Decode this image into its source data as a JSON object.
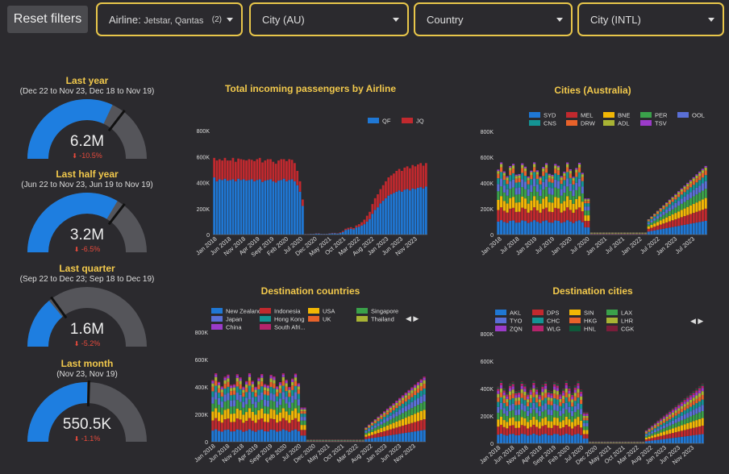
{
  "header": {
    "reset_label": "Reset filters",
    "filters": [
      {
        "label": "Airline: ",
        "value": "Jetstar, Qantas",
        "count": "(2)"
      },
      {
        "label": "City (AU)",
        "value": "",
        "count": ""
      },
      {
        "label": "Country",
        "value": "",
        "count": ""
      },
      {
        "label": "City (INTL)",
        "value": "",
        "count": ""
      }
    ]
  },
  "gauges": [
    {
      "title": "Last year",
      "subtitle": "(Dec 22 to Nov 23, Dec 18 to Nov 19)",
      "value": "6.2M",
      "delta": "-10.5%",
      "fraction": 0.64,
      "target": 0.71
    },
    {
      "title": "Last half year",
      "subtitle": "(Jun 22 to Nov 23, Jun 19 to Nov 19)",
      "value": "3.2M",
      "delta": "-6.5%",
      "fraction": 0.67,
      "target": 0.71
    },
    {
      "title": "Last quarter",
      "subtitle": "(Sep 22 to Dec 23; Sep 18 to Dec 19)",
      "value": "1.6M",
      "delta": "-5.2%",
      "fraction": 0.28,
      "target": 0.3
    },
    {
      "title": "Last month",
      "subtitle": "(Nov 23, Nov 19)",
      "value": "550.5K",
      "delta": "-1.1%",
      "fraction": 0.5,
      "target": 0.51
    }
  ],
  "colors": {
    "gauge_fill": "#1e7ee0",
    "gauge_track": "#55555a",
    "delta_red": "#e84a3c",
    "title_yellow": "#f2c94c"
  },
  "chart_data": [
    {
      "type": "bar",
      "stacked": true,
      "title": "Total incoming passengers by Airline",
      "ylim": [
        0,
        800000
      ],
      "yticks": [
        "0",
        "200K",
        "400K",
        "600K",
        "800K"
      ],
      "xticks": [
        "Jan 2018",
        "Jun 2018",
        "Nov 2018",
        "Apr 2019",
        "Sept 2019",
        "Feb 2020",
        "Jul 2020",
        "Dec 2020",
        "May 2021",
        "Oct 2021",
        "Mar 2022",
        "Aug 2022",
        "Jan 2023",
        "Jun 2023",
        "Nov 2023"
      ],
      "series": [
        {
          "name": "QF",
          "color": "#1f77d4",
          "values": [
            440000,
            410000,
            425000,
            420000,
            430000,
            415000,
            420000,
            425000,
            410000,
            430000,
            420000,
            425000,
            415000,
            420000,
            425000,
            410000,
            420000,
            425000,
            405000,
            415000,
            420000,
            425000,
            410000,
            400000,
            415000,
            420000,
            430000,
            410000,
            420000,
            425000,
            410000,
            380000,
            330000,
            220000,
            3000,
            3000,
            5000,
            5000,
            8000,
            8000,
            5000,
            5000,
            5000,
            8000,
            10000,
            10000,
            8000,
            12000,
            20000,
            35000,
            40000,
            45000,
            40000,
            55000,
            60000,
            70000,
            80000,
            100000,
            120000,
            160000,
            190000,
            210000,
            240000,
            260000,
            280000,
            300000,
            310000,
            320000,
            330000,
            340000,
            330000,
            345000,
            350000,
            340000,
            355000,
            350000,
            360000,
            365000,
            355000,
            370000
          ]
        },
        {
          "name": "JQ",
          "color": "#c1292e",
          "values": [
            150000,
            160000,
            155000,
            150000,
            160000,
            155000,
            150000,
            165000,
            150000,
            155000,
            160000,
            150000,
            155000,
            160000,
            150000,
            155000,
            160000,
            165000,
            150000,
            155000,
            160000,
            155000,
            150000,
            145000,
            155000,
            160000,
            150000,
            155000,
            160000,
            150000,
            140000,
            110000,
            80000,
            50000,
            1000,
            1000,
            1000,
            1000,
            2000,
            2000,
            1000,
            1000,
            1000,
            2000,
            3000,
            3000,
            2000,
            5000,
            8000,
            10000,
            12000,
            12000,
            10000,
            15000,
            20000,
            25000,
            35000,
            45000,
            55000,
            75000,
            90000,
            100000,
            110000,
            120000,
            130000,
            140000,
            145000,
            150000,
            160000,
            165000,
            160000,
            170000,
            175000,
            170000,
            180000,
            175000,
            180000,
            185000,
            175000,
            180000
          ]
        }
      ]
    },
    {
      "type": "bar",
      "stacked": true,
      "title": "Cities (Australia)",
      "ylim": [
        0,
        800000
      ],
      "yticks": [
        "0",
        "200K",
        "400K",
        "600K",
        "800K"
      ],
      "xticks": [
        "Jan 2018",
        "Jul 2018",
        "Jan 2019",
        "Jul 2019",
        "Jan 2020",
        "Jul 2020",
        "Jan 2021",
        "Jul 2021",
        "Jan 2022",
        "Jul 2022",
        "Jan 2023",
        "Jul 2023"
      ],
      "series": [
        {
          "name": "SYD",
          "color": "#1f77d4",
          "values": []
        },
        {
          "name": "MEL",
          "color": "#c1292e",
          "values": []
        },
        {
          "name": "BNE",
          "color": "#f2b705",
          "values": []
        },
        {
          "name": "PER",
          "color": "#3aa14a",
          "values": []
        },
        {
          "name": "OOL",
          "color": "#5a6fd6",
          "values": []
        },
        {
          "name": "CNS",
          "color": "#149494",
          "values": []
        },
        {
          "name": "DRW",
          "color": "#e8622a",
          "values": []
        },
        {
          "name": "ADL",
          "color": "#a8b334",
          "values": []
        },
        {
          "name": "TSV",
          "color": "#9b3bc9",
          "values": []
        }
      ]
    },
    {
      "type": "bar",
      "stacked": true,
      "title": "Destination countries",
      "ylim": [
        0,
        800000
      ],
      "yticks": [
        "0",
        "200K",
        "400K",
        "600K",
        "800K"
      ],
      "xticks": [
        "Jan 2018",
        "Jun 2018",
        "Nov 2018",
        "Apr 2019",
        "Sept 2019",
        "Feb 2020",
        "Jul 2020",
        "Dec 2020",
        "May 2021",
        "Oct 2021",
        "Mar 2022",
        "Aug 2022",
        "Jan 2023",
        "Jun 2023",
        "Nov 2023"
      ],
      "series": [
        {
          "name": "New Zealand",
          "color": "#1f77d4",
          "values": []
        },
        {
          "name": "Indonesia",
          "color": "#c1292e",
          "values": []
        },
        {
          "name": "USA",
          "color": "#f2b705",
          "values": []
        },
        {
          "name": "Singapore",
          "color": "#3aa14a",
          "values": []
        },
        {
          "name": "Japan",
          "color": "#5a6fd6",
          "values": []
        },
        {
          "name": "Hong Kong",
          "color": "#149494",
          "values": []
        },
        {
          "name": "UK",
          "color": "#e8622a",
          "values": []
        },
        {
          "name": "Thailand",
          "color": "#a8b334",
          "values": []
        },
        {
          "name": "China",
          "color": "#9b3bc9",
          "values": []
        },
        {
          "name": "South Afri...",
          "color": "#b5246b",
          "values": []
        }
      ]
    },
    {
      "type": "bar",
      "stacked": true,
      "title": "Destination cities",
      "ylim": [
        0,
        800000
      ],
      "yticks": [
        "0",
        "200K",
        "400K",
        "600K",
        "800K"
      ],
      "xticks": [
        "Jan 2018",
        "Jun 2018",
        "Nov 2018",
        "Apr 2019",
        "Sept 2019",
        "Feb 2020",
        "Jul 2020",
        "Dec 2020",
        "May 2021",
        "Oct 2021",
        "Mar 2022",
        "Aug 2022",
        "Jan 2023",
        "Jun 2023",
        "Nov 2023"
      ],
      "series": [
        {
          "name": "AKL",
          "color": "#1f77d4",
          "values": []
        },
        {
          "name": "DPS",
          "color": "#c1292e",
          "values": []
        },
        {
          "name": "SIN",
          "color": "#f2b705",
          "values": []
        },
        {
          "name": "LAX",
          "color": "#3aa14a",
          "values": []
        },
        {
          "name": "TYO",
          "color": "#5a6fd6",
          "values": []
        },
        {
          "name": "CHC",
          "color": "#149494",
          "values": []
        },
        {
          "name": "HKG",
          "color": "#e8622a",
          "values": []
        },
        {
          "name": "LHR",
          "color": "#a8b334",
          "values": []
        },
        {
          "name": "ZQN",
          "color": "#9b3bc9",
          "values": []
        },
        {
          "name": "WLG",
          "color": "#b5246b",
          "values": []
        },
        {
          "name": "HNL",
          "color": "#0e5a3a",
          "values": []
        },
        {
          "name": "CGK",
          "color": "#7a1d3a",
          "values": []
        }
      ]
    }
  ],
  "pagers": [
    "◀ ▶",
    "◀ ▶"
  ]
}
